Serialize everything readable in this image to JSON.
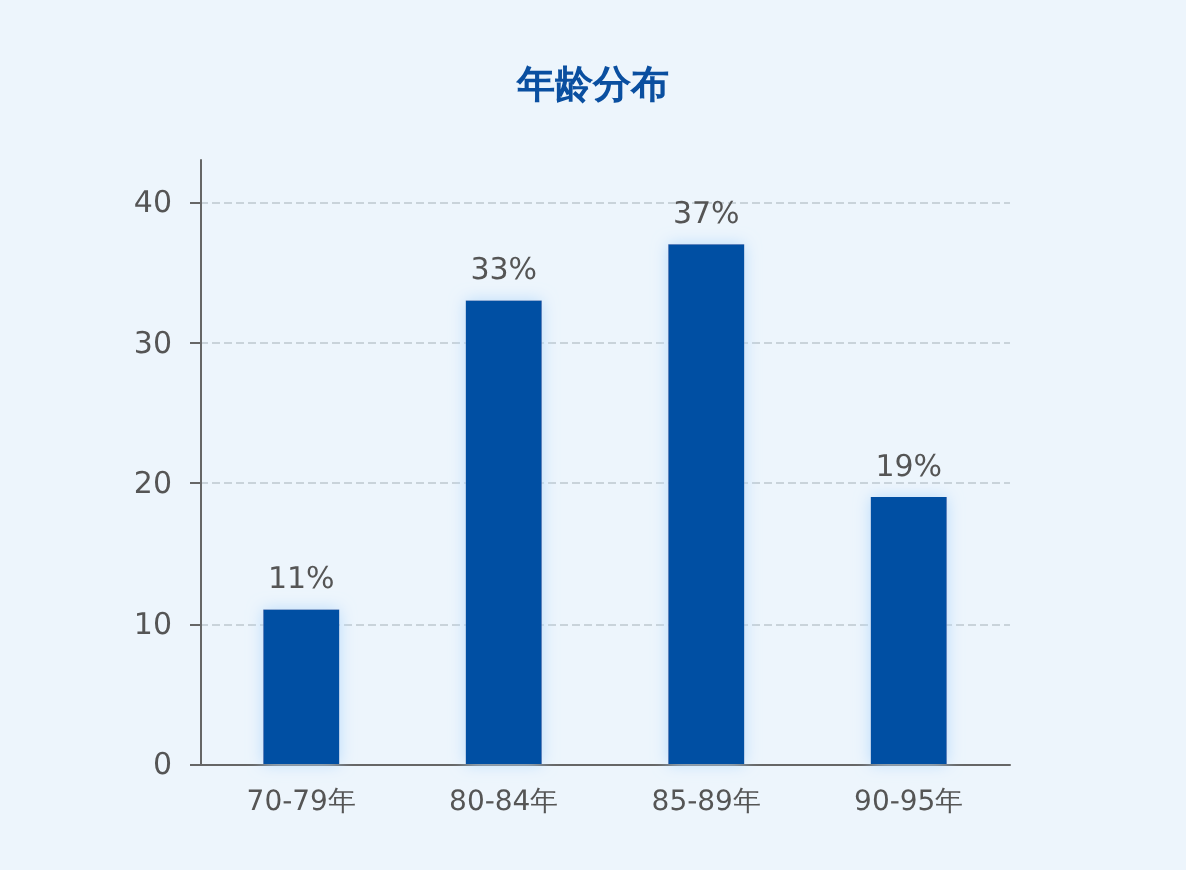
{
  "chart_data": {
    "type": "bar",
    "title": "年龄分布",
    "categories": [
      "70-79年",
      "80-84年",
      "85-89年",
      "90-95年"
    ],
    "values": [
      11,
      33,
      37,
      19
    ],
    "value_labels": [
      "11%",
      "33%",
      "37%",
      "19%"
    ],
    "color": "#0050a3",
    "ylim": [
      0,
      43
    ],
    "yticks": [
      0,
      10,
      20,
      30,
      40
    ],
    "grid": "y"
  }
}
